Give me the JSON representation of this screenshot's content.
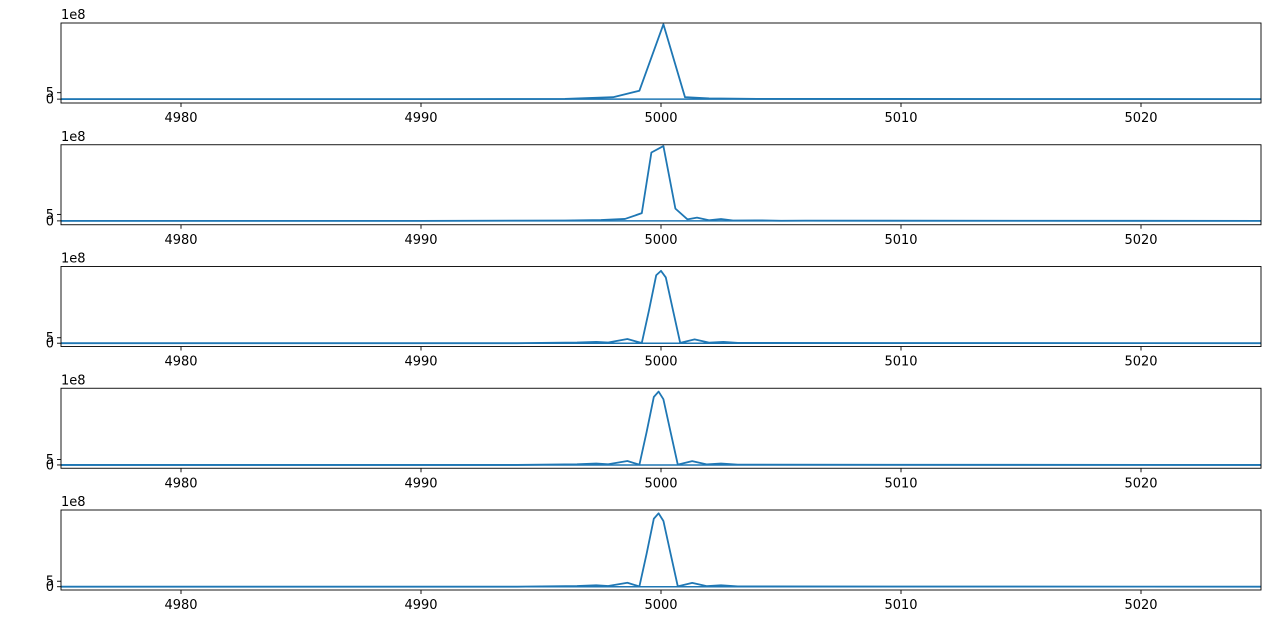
{
  "chart_data": [
    {
      "type": "line",
      "title": "",
      "xlabel": "",
      "ylabel": "",
      "offset_label": "1e8",
      "xlim": [
        4975,
        5025
      ],
      "ylim": [
        -3,
        59
      ],
      "xticks": [
        4980,
        4990,
        5000,
        5010,
        5020
      ],
      "yticks": [
        0,
        5
      ],
      "tick_labels_y": [
        "0",
        "5"
      ],
      "grid": false,
      "line_color": "#1f77b4",
      "series": [
        {
          "x": [
            4975,
            4990,
            4996,
            4998,
            4999.1,
            5000.1,
            5001,
            5002,
            5004,
            5025
          ],
          "y": [
            0,
            0,
            0.2,
            1.5,
            6.5,
            58,
            1.5,
            0.6,
            0.2,
            0
          ]
        }
      ]
    },
    {
      "type": "line",
      "title": "",
      "xlabel": "",
      "ylabel": "",
      "offset_label": "1e8",
      "xlim": [
        4975,
        5025
      ],
      "ylim": [
        -3,
        59
      ],
      "xticks": [
        4980,
        4990,
        5000,
        5010,
        5020
      ],
      "yticks": [
        0,
        5
      ],
      "tick_labels_y": [
        "0",
        "5"
      ],
      "grid": false,
      "line_color": "#1f77b4",
      "series": [
        {
          "x": [
            4975,
            4990,
            4996,
            4997.5,
            4998.5,
            4999.2,
            4999.6,
            5000.1,
            5000.6,
            5001.1,
            5001.5,
            5002,
            5002.5,
            5003,
            5004,
            5005,
            5006,
            5025
          ],
          "y": [
            0,
            0,
            0.3,
            0.7,
            1.5,
            6,
            53,
            58,
            9.5,
            1.2,
            2.5,
            0.5,
            1.4,
            0.3,
            0.4,
            0.1,
            0.2,
            0
          ]
        }
      ]
    },
    {
      "type": "line",
      "title": "",
      "xlabel": "",
      "ylabel": "",
      "offset_label": "1e8",
      "xlim": [
        4975,
        5025
      ],
      "ylim": [
        -3,
        70
      ],
      "xticks": [
        4980,
        4990,
        5000,
        5010,
        5020
      ],
      "yticks": [
        0,
        5
      ],
      "tick_labels_y": [
        "0",
        "5"
      ],
      "grid": false,
      "line_color": "#1f77b4",
      "series": [
        {
          "x": [
            4975,
            4994,
            4995.5,
            4996.5,
            4997.3,
            4997.8,
            4998.6,
            4999.2,
            4999.5,
            4999.8,
            5000,
            5000.2,
            5000.5,
            5000.8,
            5001.4,
            5002,
            5002.6,
            5003.2,
            5004,
            5025
          ],
          "y": [
            0,
            0,
            0.4,
            0.6,
            1.2,
            0.6,
            3.8,
            0.2,
            30,
            62,
            66,
            60,
            30,
            0.3,
            3.5,
            0.5,
            1.2,
            0.3,
            0.3,
            0
          ]
        }
      ]
    },
    {
      "type": "line",
      "title": "",
      "xlabel": "",
      "ylabel": "",
      "offset_label": "1e8",
      "xlim": [
        4975,
        5025
      ],
      "ylim": [
        -3,
        70
      ],
      "xticks": [
        4980,
        4990,
        5000,
        5010,
        5020
      ],
      "yticks": [
        0,
        5
      ],
      "tick_labels_y": [
        "0",
        "5"
      ],
      "grid": false,
      "line_color": "#1f77b4",
      "series": [
        {
          "x": [
            4975,
            4994,
            4995.5,
            4996.5,
            4997.3,
            4997.8,
            4998.6,
            4999.1,
            4999.4,
            4999.7,
            4999.9,
            5000.1,
            5000.4,
            5000.7,
            5001.3,
            5001.9,
            5002.5,
            5003.2,
            5004,
            5025
          ],
          "y": [
            0,
            0,
            0.4,
            0.6,
            1.3,
            0.6,
            3.6,
            0.2,
            30,
            62,
            67,
            60,
            30,
            0.3,
            3.5,
            0.5,
            1.3,
            0.3,
            0.3,
            0
          ]
        }
      ]
    },
    {
      "type": "line",
      "title": "",
      "xlabel": "",
      "ylabel": "",
      "offset_label": "1e8",
      "xlim": [
        4975,
        5025
      ],
      "ylim": [
        -3,
        70
      ],
      "xticks": [
        4980,
        4990,
        5000,
        5010,
        5020
      ],
      "yticks": [
        0,
        5
      ],
      "tick_labels_y": [
        "0",
        "5"
      ],
      "grid": false,
      "line_color": "#1f77b4",
      "series": [
        {
          "x": [
            4975,
            4994,
            4995.5,
            4996.5,
            4997.3,
            4997.8,
            4998.6,
            4999.1,
            4999.4,
            4999.7,
            4999.9,
            5000.1,
            5000.4,
            5000.7,
            5001.3,
            5001.9,
            5002.5,
            5003.2,
            5004,
            5025
          ],
          "y": [
            0,
            0,
            0.4,
            0.6,
            1.3,
            0.6,
            3.6,
            0.2,
            30,
            62,
            67,
            60,
            30,
            0.3,
            3.5,
            0.5,
            1.3,
            0.3,
            0.3,
            0
          ]
        }
      ]
    }
  ]
}
